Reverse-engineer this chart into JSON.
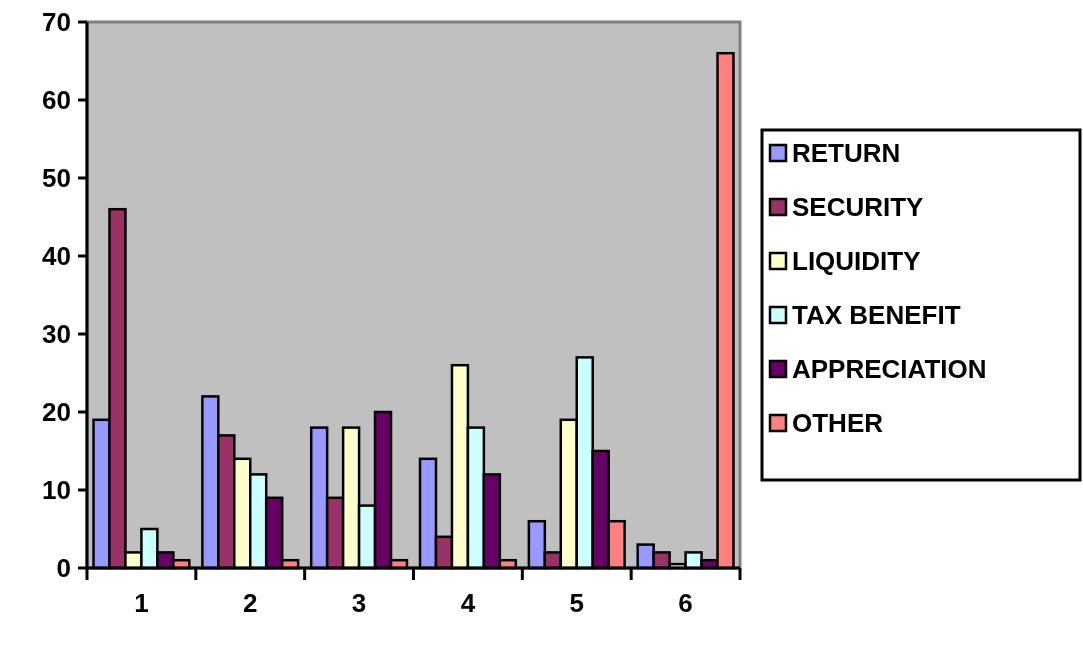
{
  "chart_data": {
    "type": "bar",
    "categories": [
      "1",
      "2",
      "3",
      "4",
      "5",
      "6"
    ],
    "series": [
      {
        "name": "RETURN",
        "color": "#9999ff",
        "values": [
          19,
          22,
          18,
          14,
          6,
          3
        ]
      },
      {
        "name": "SECURITY",
        "color": "#993366",
        "values": [
          46,
          17,
          9,
          4,
          2,
          2
        ]
      },
      {
        "name": "LIQUIDITY",
        "color": "#ffffcc",
        "values": [
          2,
          14,
          18,
          26,
          19,
          0.5
        ]
      },
      {
        "name": "TAX BENEFIT",
        "color": "#ccffff",
        "values": [
          5,
          12,
          8,
          18,
          27,
          2
        ]
      },
      {
        "name": "APPRECIATION",
        "color": "#660066",
        "values": [
          2,
          9,
          20,
          12,
          15,
          1
        ]
      },
      {
        "name": "OTHER",
        "color": "#ff8080",
        "values": [
          1,
          1,
          1,
          1,
          6,
          66
        ]
      }
    ],
    "ylim": [
      0,
      70
    ],
    "yticks": [
      0,
      10,
      20,
      30,
      40,
      50,
      60,
      70
    ],
    "grid": false,
    "legend": "right"
  }
}
